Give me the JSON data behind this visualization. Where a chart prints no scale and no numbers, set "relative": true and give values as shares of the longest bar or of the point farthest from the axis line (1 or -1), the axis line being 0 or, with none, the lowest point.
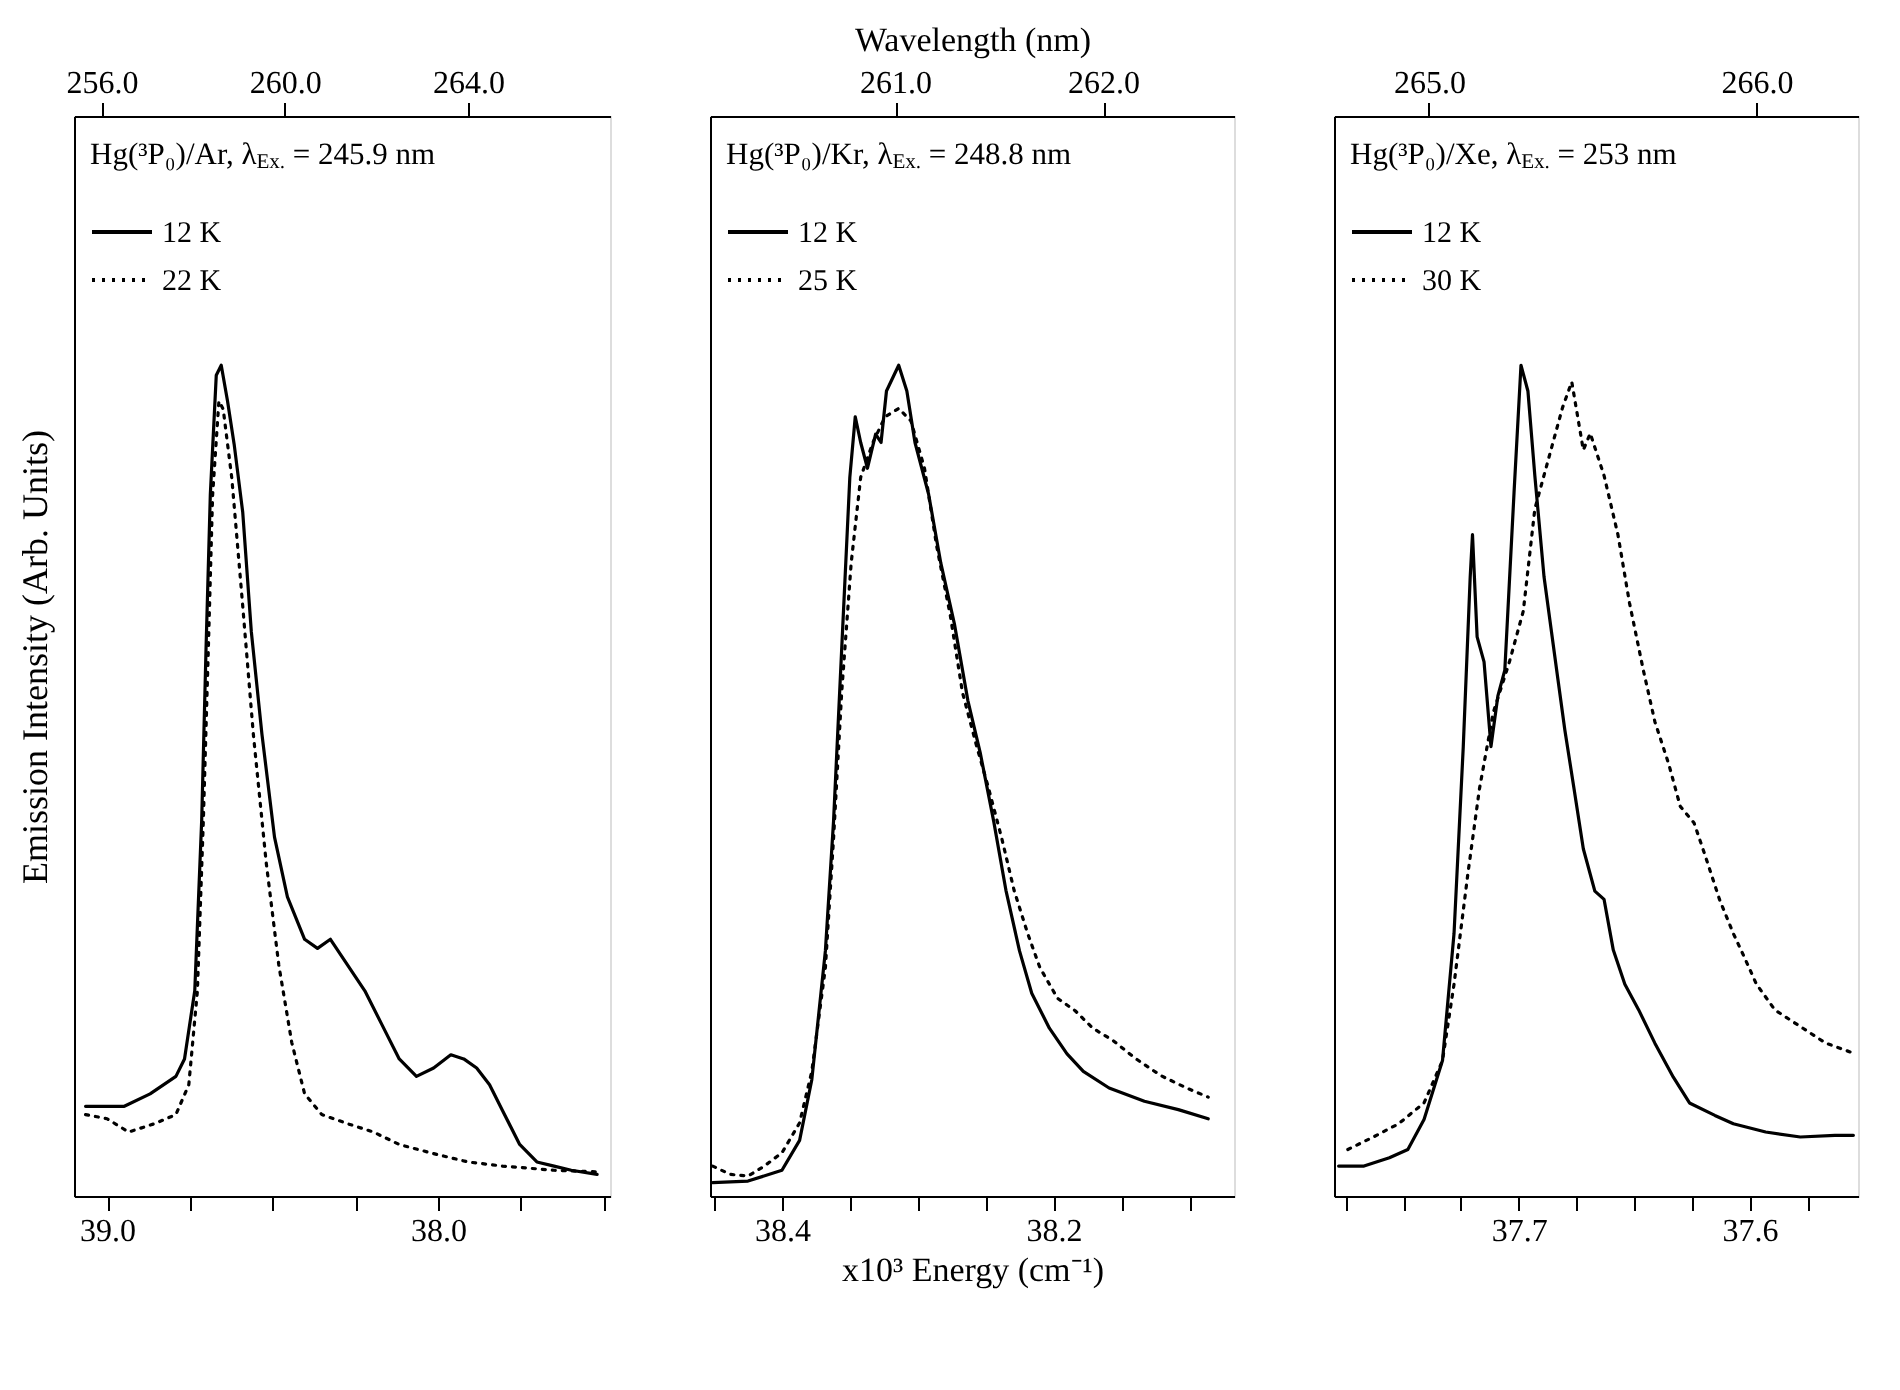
{
  "chart_data": [
    {
      "type": "line",
      "title": "Hg(³P₀)/Ar, λ$_{Ex.}$ = 245.9 nm",
      "ylabel": "Emission Intensity (Arb. Units)",
      "relative": true,
      "grid": false,
      "legend": "top left",
      "xlim": [
        39.1,
        37.48
      ],
      "xticks": [
        {
          "value": 39,
          "label": "39.0"
        },
        {
          "value": 38.75,
          "label": null
        },
        {
          "value": 38.5,
          "label": null
        },
        {
          "value": 38.25,
          "label": null
        },
        {
          "value": 38,
          "label": "38.0"
        },
        {
          "value": 37.75,
          "label": null
        },
        {
          "value": 37.5,
          "label": null
        }
      ],
      "x2lim": [
        255.4,
        267.1
      ],
      "x2ticks": [
        {
          "value": 256,
          "label": "256.0"
        },
        {
          "value": 260,
          "label": "260.0"
        },
        {
          "value": 264,
          "label": "264.0"
        }
      ],
      "series": [
        {
          "name": "12 K",
          "color": "#000000",
          "line_style": "solid",
          "x": [
            39.065,
            38.948,
            38.87,
            38.792,
            38.766,
            38.735,
            38.714,
            38.701,
            38.688,
            38.67,
            38.655,
            38.636,
            38.616,
            38.59,
            38.564,
            38.532,
            38.494,
            38.455,
            38.403,
            38.364,
            38.325,
            38.273,
            38.221,
            38.169,
            38.117,
            38.065,
            38.013,
            37.961,
            37.922,
            37.883,
            37.844,
            37.805,
            37.753,
            37.701,
            37.649,
            37.597,
            37.519
          ],
          "values": [
            0.108,
            0.108,
            0.123,
            0.144,
            0.165,
            0.247,
            0.453,
            0.658,
            0.844,
            0.988,
            1.0,
            0.957,
            0.905,
            0.823,
            0.679,
            0.556,
            0.432,
            0.36,
            0.309,
            0.298,
            0.309,
            0.278,
            0.247,
            0.206,
            0.165,
            0.144,
            0.154,
            0.17,
            0.165,
            0.154,
            0.134,
            0.103,
            0.062,
            0.041,
            0.036,
            0.031,
            0.026
          ]
        },
        {
          "name": "22 K",
          "color": "#000000",
          "line_style": "dotted",
          "x": [
            39.065,
            39.0,
            38.935,
            38.857,
            38.792,
            38.753,
            38.727,
            38.709,
            38.694,
            38.681,
            38.662,
            38.649,
            38.623,
            38.59,
            38.558,
            38.519,
            38.481,
            38.442,
            38.403,
            38.351,
            38.273,
            38.195,
            38.117,
            38.013,
            37.909,
            37.805,
            37.649,
            37.519
          ],
          "values": [
            0.098,
            0.093,
            0.077,
            0.087,
            0.098,
            0.134,
            0.247,
            0.453,
            0.658,
            0.844,
            0.957,
            0.947,
            0.864,
            0.71,
            0.556,
            0.401,
            0.278,
            0.185,
            0.123,
            0.098,
            0.087,
            0.077,
            0.062,
            0.051,
            0.041,
            0.036,
            0.031,
            0.029
          ]
        }
      ]
    },
    {
      "type": "line",
      "title": "Hg(³P₀)/Kr, λ$_{Ex.}$ = 248.8 nm",
      "xlabel": "x10³ Energy (cm⁻¹)",
      "x2label": "Wavelength (nm)",
      "relative": true,
      "grid": false,
      "legend": "top left",
      "xlim": [
        38.453,
        38.067
      ],
      "xticks": [
        {
          "value": 38.45,
          "label": null
        },
        {
          "value": 38.4,
          "label": "38.4"
        },
        {
          "value": 38.35,
          "label": null
        },
        {
          "value": 38.3,
          "label": null
        },
        {
          "value": 38.25,
          "label": null
        },
        {
          "value": 38.2,
          "label": "38.2"
        },
        {
          "value": 38.15,
          "label": null
        },
        {
          "value": 38.1,
          "label": null
        }
      ],
      "x2lim": [
        260.11,
        262.63
      ],
      "x2ticks": [
        {
          "value": 261,
          "label": "261.0"
        },
        {
          "value": 262,
          "label": "262.0"
        }
      ],
      "series": [
        {
          "name": "12 K",
          "color": "#000000",
          "line_style": "solid",
          "x": [
            38.451,
            38.425,
            38.4,
            38.387,
            38.378,
            38.368,
            38.362,
            38.356,
            38.35,
            38.346,
            38.342,
            38.337,
            38.331,
            38.327,
            38.323,
            38.314,
            38.308,
            38.302,
            38.292,
            38.283,
            38.273,
            38.263,
            38.254,
            38.244,
            38.235,
            38.225,
            38.216,
            38.203,
            38.19,
            38.178,
            38.159,
            38.133,
            38.108,
            38.086
          ],
          "values": [
            0.016,
            0.018,
            0.031,
            0.067,
            0.14,
            0.295,
            0.451,
            0.658,
            0.865,
            0.938,
            0.907,
            0.876,
            0.917,
            0.907,
            0.969,
            1.0,
            0.969,
            0.907,
            0.845,
            0.762,
            0.689,
            0.596,
            0.534,
            0.451,
            0.368,
            0.295,
            0.244,
            0.202,
            0.171,
            0.15,
            0.13,
            0.114,
            0.104,
            0.093
          ]
        },
        {
          "name": "25 K",
          "color": "#000000",
          "line_style": "dotted",
          "x": [
            38.451,
            38.438,
            38.425,
            38.413,
            38.4,
            38.387,
            38.378,
            38.368,
            38.362,
            38.356,
            38.349,
            38.342,
            38.333,
            38.324,
            38.314,
            38.305,
            38.295,
            38.286,
            38.276,
            38.267,
            38.257,
            38.248,
            38.238,
            38.229,
            38.219,
            38.21,
            38.197,
            38.184,
            38.171,
            38.156,
            38.14,
            38.121,
            38.102,
            38.086
          ],
          "values": [
            0.036,
            0.026,
            0.024,
            0.036,
            0.052,
            0.088,
            0.15,
            0.275,
            0.43,
            0.606,
            0.762,
            0.865,
            0.907,
            0.938,
            0.948,
            0.933,
            0.876,
            0.782,
            0.699,
            0.606,
            0.544,
            0.492,
            0.43,
            0.368,
            0.316,
            0.275,
            0.238,
            0.223,
            0.202,
            0.187,
            0.166,
            0.145,
            0.13,
            0.119
          ]
        }
      ]
    },
    {
      "type": "line",
      "title": "Hg(³P₀)/Xe, λ$_{Ex.}$ = 253 nm",
      "relative": true,
      "grid": false,
      "legend": "top left",
      "xlim": [
        37.78,
        37.553
      ],
      "xticks": [
        {
          "value": 37.775,
          "label": null
        },
        {
          "value": 37.75,
          "label": null
        },
        {
          "value": 37.725,
          "label": null
        },
        {
          "value": 37.7,
          "label": "37.7"
        },
        {
          "value": 37.675,
          "label": null
        },
        {
          "value": 37.65,
          "label": null
        },
        {
          "value": 37.625,
          "label": null
        },
        {
          "value": 37.6,
          "label": "37.6"
        },
        {
          "value": 37.575,
          "label": null
        }
      ],
      "x2lim": [
        264.71,
        266.31
      ],
      "x2ticks": [
        {
          "value": 265,
          "label": "265.0"
        },
        {
          "value": 266,
          "label": "266.0"
        }
      ],
      "series": [
        {
          "name": "12 K",
          "color": "#000000",
          "line_style": "solid",
          "x": [
            37.778,
            37.767,
            37.756,
            37.748,
            37.741,
            37.733,
            37.728,
            37.724,
            37.721,
            37.72,
            37.718,
            37.715,
            37.712,
            37.709,
            37.706,
            37.702,
            37.699,
            37.696,
            37.693,
            37.689,
            37.683,
            37.68,
            37.676,
            37.672,
            37.667,
            37.663,
            37.659,
            37.654,
            37.648,
            37.641,
            37.633,
            37.626,
            37.615,
            37.607,
            37.593,
            37.578,
            37.563,
            37.555
          ],
          "values": [
            0.036,
            0.036,
            0.046,
            0.056,
            0.092,
            0.163,
            0.316,
            0.541,
            0.745,
            0.796,
            0.673,
            0.643,
            0.541,
            0.602,
            0.633,
            0.847,
            1.0,
            0.969,
            0.867,
            0.745,
            0.622,
            0.561,
            0.49,
            0.418,
            0.367,
            0.357,
            0.296,
            0.255,
            0.224,
            0.184,
            0.143,
            0.112,
            0.097,
            0.087,
            0.077,
            0.071,
            0.073,
            0.073
          ]
        },
        {
          "name": "30 K",
          "color": "#000000",
          "line_style": "dotted",
          "x": [
            37.774,
            37.763,
            37.752,
            37.741,
            37.733,
            37.728,
            37.722,
            37.717,
            37.711,
            37.704,
            37.698,
            37.693,
            37.687,
            37.681,
            37.677,
            37.672,
            37.669,
            37.663,
            37.657,
            37.652,
            37.646,
            37.641,
            37.635,
            37.63,
            37.624,
            37.619,
            37.613,
            37.607,
            37.602,
            37.597,
            37.589,
            37.578,
            37.567,
            37.556
          ],
          "values": [
            0.056,
            0.071,
            0.087,
            0.112,
            0.163,
            0.255,
            0.388,
            0.49,
            0.582,
            0.643,
            0.704,
            0.827,
            0.888,
            0.949,
            0.98,
            0.898,
            0.918,
            0.867,
            0.796,
            0.714,
            0.633,
            0.571,
            0.52,
            0.469,
            0.449,
            0.408,
            0.357,
            0.316,
            0.286,
            0.255,
            0.224,
            0.204,
            0.184,
            0.173
          ]
        }
      ]
    }
  ]
}
